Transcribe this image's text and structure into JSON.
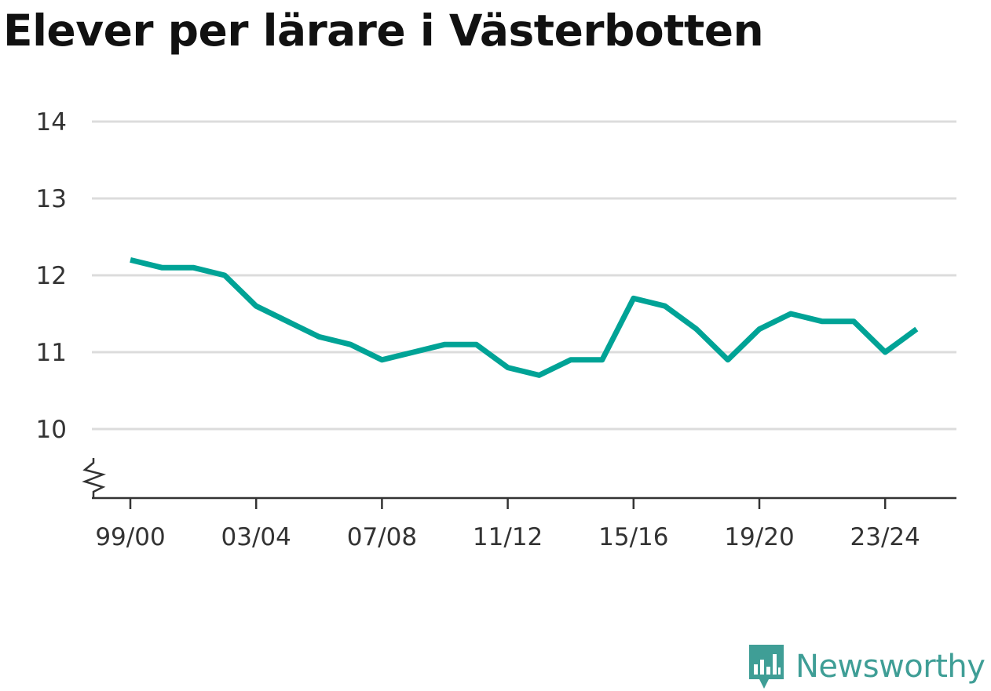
{
  "chart_data": {
    "type": "line",
    "title": "Elever per lärare i Västerbotten",
    "xlabel": "",
    "ylabel": "",
    "x": [
      "99/00",
      "00/01",
      "01/02",
      "02/03",
      "03/04",
      "04/05",
      "05/06",
      "06/07",
      "07/08",
      "08/09",
      "09/10",
      "10/11",
      "11/12",
      "12/13",
      "13/14",
      "14/15",
      "15/16",
      "16/17",
      "17/18",
      "18/19",
      "19/20",
      "20/21",
      "21/22",
      "22/23",
      "23/24",
      "24/25"
    ],
    "x_tick_labels": [
      "99/00",
      "03/04",
      "07/08",
      "11/12",
      "15/16",
      "19/20",
      "23/24"
    ],
    "series": [
      {
        "values": [
          12.2,
          12.1,
          12.1,
          12.0,
          11.6,
          11.4,
          11.2,
          11.1,
          10.9,
          11.0,
          11.1,
          11.1,
          10.8,
          10.7,
          10.9,
          10.9,
          11.7,
          11.6,
          11.3,
          10.9,
          11.3,
          11.5,
          11.4,
          11.4,
          11.0,
          11.3
        ],
        "color": "#00a396"
      }
    ],
    "y_ticks": [
      10,
      11,
      12,
      13,
      14
    ],
    "ylim": [
      9.1,
      14
    ],
    "y_axis_break": true,
    "grid": true,
    "legend": "none"
  },
  "brand": {
    "name": "Newsworthy",
    "icon": "chart-speech-bubble-icon",
    "color": "#3f9e96"
  }
}
